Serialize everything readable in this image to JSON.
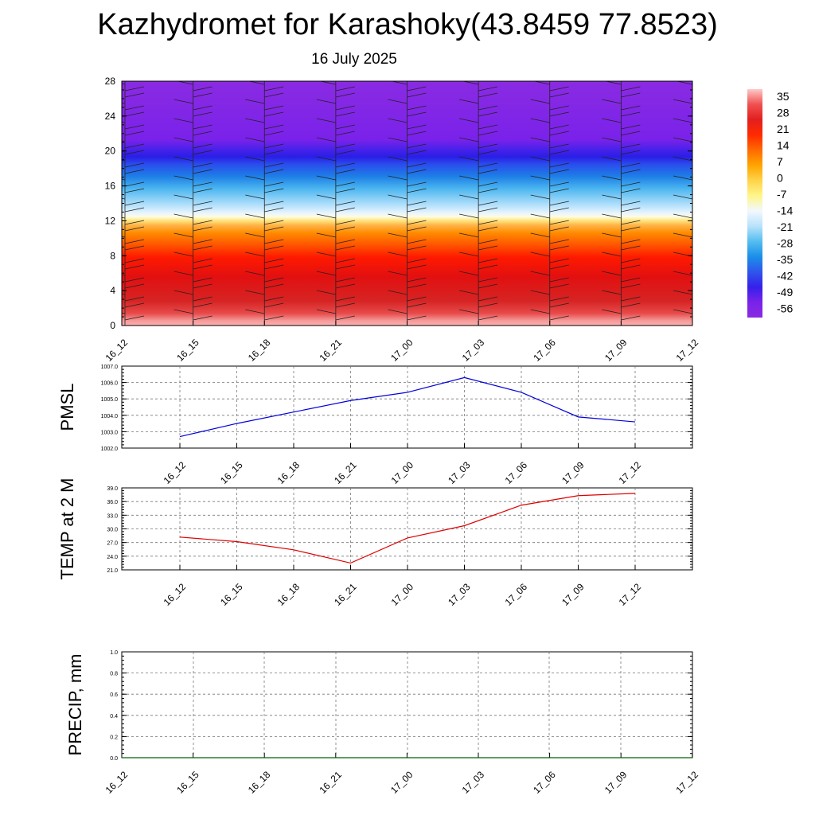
{
  "header": {
    "title": "Kazhydromet for Karashoky(43.8459 77.8523)",
    "subtitle": "16 July 2025"
  },
  "colors": {
    "pmsl_line": "#0000dd",
    "temp_line": "#dd0000",
    "precip_line": "#006400",
    "grid": "#777777"
  },
  "chart_data": [
    {
      "type": "heatmap",
      "name": "vertical-profile",
      "x_ticks": [
        "16_12",
        "16_15",
        "16_18",
        "16_21",
        "17_00",
        "17_03",
        "17_06",
        "17_09",
        "17_12"
      ],
      "y_ticks": [
        "0",
        "4",
        "8",
        "12",
        "16",
        "20",
        "24",
        "28"
      ],
      "ylim": [
        0,
        28
      ],
      "colorbar_labels": [
        "35",
        "28",
        "21",
        "14",
        "7",
        "0",
        "-7",
        "-14",
        "-21",
        "-28",
        "-35",
        "-42",
        "-49",
        "-56"
      ],
      "colorbar_range": [
        -60,
        38
      ],
      "colorbar_stops": [
        "#ffc8c8",
        "#f05050",
        "#e21f1f",
        "#ff2a00",
        "#ff6a00",
        "#ffa500",
        "#ffd34a",
        "#fff68a",
        "#f2f8ff",
        "#b8e2fb",
        "#55bdf0",
        "#1a8fe8",
        "#2f55ec",
        "#3520ea",
        "#7a22ea",
        "#8a2be2"
      ],
      "wind_barbs": true
    },
    {
      "type": "line",
      "name": "pmsl",
      "ylabel": "PMSL",
      "x": [
        "16_12",
        "16_15",
        "16_18",
        "16_21",
        "17_00",
        "17_03",
        "17_06",
        "17_09",
        "17_12"
      ],
      "y": [
        1002.7,
        1003.5,
        1004.2,
        1004.9,
        1005.4,
        1006.3,
        1005.4,
        1003.9,
        1003.6
      ],
      "ylim": [
        1002.0,
        1007.0
      ],
      "y_ticks": [
        "1002.0",
        "1003.0",
        "1004.0",
        "1005.0",
        "1006.0",
        "1007.0"
      ],
      "grid": true
    },
    {
      "type": "line",
      "name": "temp-2m",
      "ylabel": "TEMP at 2 M",
      "x": [
        "16_12",
        "16_15",
        "16_18",
        "16_21",
        "17_00",
        "17_03",
        "17_06",
        "17_09",
        "17_12"
      ],
      "y": [
        28.2,
        27.2,
        25.4,
        22.5,
        28.0,
        30.7,
        35.2,
        37.3,
        37.8
      ],
      "ylim": [
        21.0,
        39.0
      ],
      "y_ticks": [
        "21.0",
        "24.0",
        "27.0",
        "30.0",
        "33.0",
        "36.0",
        "39.0"
      ],
      "grid": true
    },
    {
      "type": "line",
      "name": "precip",
      "ylabel": "PRECIP, mm",
      "x": [
        "16_12",
        "16_15",
        "16_18",
        "16_21",
        "17_00",
        "17_03",
        "17_06",
        "17_09",
        "17_12"
      ],
      "y": [
        0,
        0,
        0,
        0,
        0,
        0,
        0,
        0,
        0
      ],
      "ylim": [
        0.0,
        1.0
      ],
      "y_ticks": [
        "0.0",
        "0.2",
        "0.4",
        "0.6",
        "0.8",
        "1.0"
      ],
      "grid": true
    }
  ]
}
